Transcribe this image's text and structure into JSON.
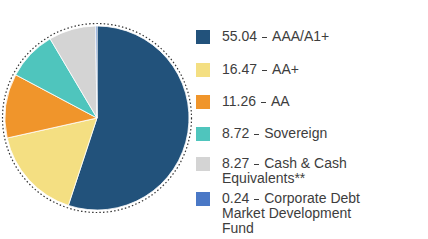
{
  "chart_data": {
    "type": "pie",
    "categories": [
      "AAA/A1+",
      "AA+",
      "AA",
      "Sovereign",
      "Cash & Cash Equivalents**",
      "Corporate Debt Market Development Fund"
    ],
    "values": [
      55.04,
      16.47,
      11.26,
      8.72,
      8.27,
      0.24
    ],
    "colors": [
      "#22527b",
      "#f4df82",
      "#f0952b",
      "#4fc5bd",
      "#d4d4d4",
      "#4a78c6"
    ],
    "legend": "right"
  }
}
